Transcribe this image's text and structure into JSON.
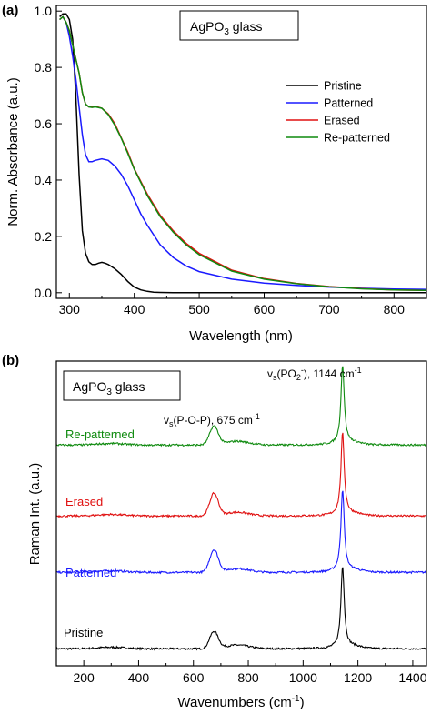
{
  "chart_data": [
    {
      "panel": "(a)",
      "type": "line",
      "xlabel": "Wavelength (nm)",
      "ylabel": "Norm. Absorbance (a.u.)",
      "xlim": [
        280,
        850
      ],
      "ylim": [
        -0.02,
        1.02
      ],
      "xticks": [
        300,
        400,
        500,
        600,
        700,
        800
      ],
      "yticks": [
        0.0,
        0.2,
        0.4,
        0.6,
        0.8,
        1.0
      ],
      "xtick_labels": [
        "300",
        "400",
        "500",
        "600",
        "700",
        "800"
      ],
      "ytick_labels": [
        "0.0",
        "0.2",
        "0.4",
        "0.6",
        "0.8",
        "1.0"
      ],
      "inset_label": {
        "base": "AgPO",
        "sub": "3",
        "rest": " glass"
      },
      "legend_position": "top-right",
      "series": [
        {
          "name": "Pristine",
          "color": "#000000",
          "x": [
            285,
            290,
            295,
            300,
            305,
            310,
            315,
            320,
            325,
            330,
            335,
            340,
            345,
            350,
            355,
            360,
            370,
            380,
            390,
            400,
            410,
            420,
            430,
            440,
            460,
            500,
            600,
            700,
            850
          ],
          "y": [
            0.98,
            0.99,
            0.99,
            0.97,
            0.9,
            0.7,
            0.42,
            0.22,
            0.14,
            0.11,
            0.1,
            0.1,
            0.105,
            0.108,
            0.105,
            0.1,
            0.085,
            0.065,
            0.04,
            0.02,
            0.01,
            0.005,
            0.002,
            0.001,
            0.0,
            0.0,
            0.0,
            0.0,
            0.0
          ]
        },
        {
          "name": "Patterned",
          "color": "#1a1aff",
          "x": [
            285,
            290,
            295,
            300,
            305,
            310,
            315,
            320,
            325,
            330,
            335,
            340,
            350,
            360,
            370,
            380,
            390,
            400,
            410,
            420,
            440,
            460,
            480,
            500,
            550,
            600,
            650,
            700,
            750,
            800,
            850
          ],
          "y": [
            0.97,
            0.98,
            0.96,
            0.91,
            0.84,
            0.76,
            0.66,
            0.56,
            0.49,
            0.465,
            0.465,
            0.47,
            0.475,
            0.47,
            0.45,
            0.42,
            0.38,
            0.33,
            0.28,
            0.24,
            0.17,
            0.125,
            0.095,
            0.075,
            0.048,
            0.034,
            0.026,
            0.02,
            0.016,
            0.013,
            0.012
          ]
        },
        {
          "name": "Erased",
          "color": "#e01010",
          "x": [
            285,
            290,
            295,
            300,
            305,
            310,
            315,
            320,
            325,
            330,
            335,
            340,
            350,
            360,
            370,
            380,
            390,
            400,
            420,
            440,
            460,
            480,
            500,
            550,
            600,
            650,
            700,
            750,
            800,
            850
          ],
          "y": [
            0.97,
            0.98,
            0.96,
            0.93,
            0.88,
            0.83,
            0.78,
            0.71,
            0.67,
            0.66,
            0.66,
            0.662,
            0.655,
            0.635,
            0.6,
            0.55,
            0.5,
            0.44,
            0.35,
            0.275,
            0.22,
            0.175,
            0.14,
            0.08,
            0.05,
            0.033,
            0.022,
            0.015,
            0.01,
            0.008
          ]
        },
        {
          "name": "Re-patterned",
          "color": "#0f8a0f",
          "x": [
            285,
            290,
            295,
            300,
            305,
            310,
            315,
            320,
            325,
            330,
            335,
            340,
            350,
            360,
            370,
            380,
            390,
            400,
            420,
            440,
            460,
            480,
            500,
            550,
            600,
            650,
            700,
            750,
            800,
            850
          ],
          "y": [
            0.97,
            0.98,
            0.96,
            0.93,
            0.88,
            0.83,
            0.78,
            0.71,
            0.67,
            0.66,
            0.658,
            0.66,
            0.655,
            0.632,
            0.595,
            0.548,
            0.495,
            0.438,
            0.345,
            0.27,
            0.215,
            0.17,
            0.135,
            0.077,
            0.048,
            0.032,
            0.021,
            0.014,
            0.01,
            0.008
          ]
        }
      ]
    },
    {
      "panel": "(b)",
      "type": "line",
      "xlabel": "Wavenumbers",
      "xlabel_unit_base": "(cm",
      "xlabel_unit_sup": "-1",
      "xlabel_unit_close": ")",
      "ylabel": "Raman Int. (a.u.)",
      "xlim": [
        100,
        1450
      ],
      "xticks": [
        200,
        400,
        600,
        800,
        1000,
        1200,
        1400
      ],
      "xtick_labels": [
        "200",
        "400",
        "600",
        "800",
        "1000",
        "1200",
        "1400"
      ],
      "inset_label": {
        "base": "AgPO",
        "sub": "3",
        "rest": " glass"
      },
      "annotations": [
        {
          "prefix": "v",
          "sub": "s",
          "text": "(P-O-P), 675 cm",
          "sup": "-1"
        },
        {
          "prefix": "v",
          "sub": "s",
          "text": "(PO",
          "sub2": "2",
          "sup2": "-",
          "text2": "), 1144 cm",
          "sup": "-1"
        }
      ],
      "peaks_cm-1": [
        675,
        1144
      ],
      "series": [
        {
          "name": "Pristine",
          "color": "#000000",
          "offset": 0.0,
          "peak1_height": 0.55,
          "peak2_height": 2.6
        },
        {
          "name": "Patterned",
          "color": "#1a1aff",
          "offset": 1.6,
          "peak1_height": 0.72,
          "peak2_height": 2.6
        },
        {
          "name": "Erased",
          "color": "#e01010",
          "offset": 3.3,
          "peak1_height": 0.72,
          "peak2_height": 2.6
        },
        {
          "name": "Re-patterned",
          "color": "#0f8a0f",
          "offset": 5.0,
          "peak1_height": 0.6,
          "peak2_height": 2.5
        }
      ]
    }
  ]
}
